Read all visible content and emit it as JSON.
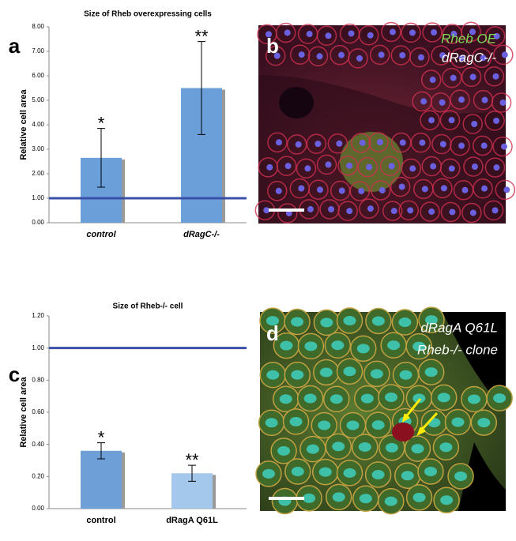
{
  "chart_data": [
    {
      "type": "bar",
      "panel": "a",
      "title": "Size of Rheb overexpressing cells",
      "ylabel": "Relative cell area",
      "categories": [
        "control",
        "dRagC-/-"
      ],
      "values": [
        2.65,
        5.5
      ],
      "errors": [
        1.2,
        1.9
      ],
      "annotations": [
        "*",
        "**"
      ],
      "colors": [
        "#6a9fd9",
        "#6a9fd9"
      ],
      "category_style": "italic",
      "ylim": [
        0,
        8
      ],
      "yticks": [
        {
          "value": 0,
          "label": "0.00"
        },
        {
          "value": 1,
          "label": "1.00"
        },
        {
          "value": 2,
          "label": "2.00"
        },
        {
          "value": 3,
          "label": "3.00"
        },
        {
          "value": 4,
          "label": "4.00"
        },
        {
          "value": 5,
          "label": "5.00"
        },
        {
          "value": 6,
          "label": "6.00"
        },
        {
          "value": 7,
          "label": "7.00"
        },
        {
          "value": 8,
          "label": "8.00"
        }
      ],
      "reference_line": 1,
      "reference_color": "#3a4fa8"
    },
    {
      "type": "bar",
      "panel": "c",
      "title": "Size of Rheb-/- cell",
      "ylabel": "Relative cell area",
      "categories": [
        "control",
        "dRagA Q61L"
      ],
      "values": [
        0.36,
        0.22
      ],
      "errors": [
        0.05,
        0.05
      ],
      "annotations": [
        "*",
        "**"
      ],
      "colors": [
        "#6e9fd6",
        "#a3c8ec"
      ],
      "category_style": "normal",
      "ylim": [
        0,
        1.2
      ],
      "yticks": [
        {
          "value": 0,
          "label": "0.00"
        },
        {
          "value": 0.2,
          "label": "0.20"
        },
        {
          "value": 0.4,
          "label": "0.40"
        },
        {
          "value": 0.6,
          "label": "0.60"
        },
        {
          "value": 0.8,
          "label": "0.80"
        },
        {
          "value": 1,
          "label": "1.00"
        },
        {
          "value": 1.2,
          "label": "1.20"
        }
      ],
      "reference_line": 1,
      "reference_color": "#3a4fa8"
    }
  ],
  "images": [
    {
      "panel": "b",
      "captions": [
        "Rheb OE",
        "dRagC-/-"
      ]
    },
    {
      "panel": "d",
      "captions": [
        "dRagA Q61L",
        "Rheb-/- clone"
      ]
    }
  ]
}
